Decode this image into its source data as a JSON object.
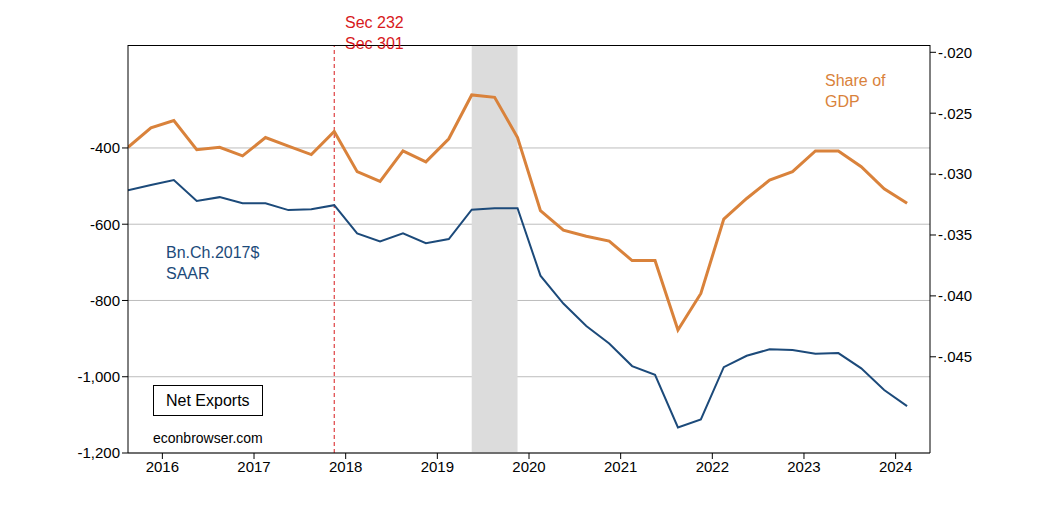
{
  "chart_data": {
    "type": "line",
    "x": [
      2016.125,
      2016.375,
      2016.625,
      2016.875,
      2017.125,
      2017.375,
      2017.625,
      2017.875,
      2018.125,
      2018.375,
      2018.625,
      2018.875,
      2019.125,
      2019.375,
      2019.625,
      2019.875,
      2020.125,
      2020.375,
      2020.625,
      2020.875,
      2021.125,
      2021.375,
      2021.625,
      2021.875,
      2022.125,
      2022.375,
      2022.625,
      2022.875,
      2023.125,
      2023.375,
      2023.625,
      2023.875,
      2024.125,
      2024.375,
      2024.625
    ],
    "xlim": [
      2016.125,
      2024.875
    ],
    "xticks": [
      {
        "value": 2016.5,
        "label": "2016"
      },
      {
        "value": 2017.5,
        "label": "2017"
      },
      {
        "value": 2018.5,
        "label": "2018"
      },
      {
        "value": 2019.5,
        "label": "2019"
      },
      {
        "value": 2020.5,
        "label": "2020"
      },
      {
        "value": 2021.5,
        "label": "2021"
      },
      {
        "value": 2022.5,
        "label": "2022"
      },
      {
        "value": 2023.5,
        "label": "2023"
      },
      {
        "value": 2024.5,
        "label": "2024"
      }
    ],
    "ylim": [
      -1200,
      -130
    ],
    "yticks": [
      {
        "value": -1200,
        "label": "-1,200"
      },
      {
        "value": -1000,
        "label": "-1,000"
      },
      -800,
      -600,
      -400
    ],
    "y2lim": [
      -0.0529,
      -0.0194
    ],
    "y2ticks": [
      {
        "value": -0.045,
        "label": "-.045"
      },
      {
        "value": -0.04,
        "label": "-.040"
      },
      {
        "value": -0.035,
        "label": "-.035"
      },
      {
        "value": -0.03,
        "label": "-.030"
      },
      {
        "value": -0.025,
        "label": "-.025"
      },
      {
        "value": -0.02,
        "label": "-.020"
      }
    ],
    "grid": true,
    "series": [
      {
        "name": "Bn.Ch.2017$ SAAR",
        "color": "#1c4a7a",
        "values": [
          -511,
          -497,
          -484,
          -539,
          -529,
          -545,
          -545,
          -563,
          -561,
          -550,
          -624,
          -645,
          -624,
          -650,
          -639,
          -562,
          -558,
          -558,
          -735,
          -808,
          -867,
          -913,
          -972,
          -995,
          -1133,
          -1112,
          -975,
          -945,
          -928,
          -930,
          -940,
          -938,
          -978,
          -1035,
          -1077
        ]
      },
      {
        "name": "Share of GDP",
        "color": "#d9823b",
        "axis": "y2",
        "values": [
          -0.0278,
          -0.0262,
          -0.0256,
          -0.028,
          -0.0278,
          -0.0285,
          -0.027,
          -0.0277,
          -0.0284,
          -0.0265,
          -0.0298,
          -0.0306,
          -0.0281,
          -0.029,
          -0.0271,
          -0.0235,
          -0.0237,
          -0.027,
          -0.033,
          -0.0346,
          -0.0351,
          -0.0355,
          -0.0371,
          -0.0371,
          -0.0428,
          -0.0398,
          -0.0337,
          -0.032,
          -0.0305,
          -0.0298,
          -0.0281,
          -0.0281,
          -0.0294,
          -0.0312,
          -0.0324
        ]
      }
    ],
    "shading": {
      "x": [
        2019.875,
        2020.375
      ],
      "color": "#dcdcdc"
    },
    "vline": {
      "x": 2018.375,
      "color": "#d7191c",
      "line_style": "dashed",
      "labels": [
        "Sec 232",
        "Sec 301"
      ]
    },
    "annotations": [
      {
        "lines": [
          "Bn.Ch.2017$",
          "SAAR"
        ],
        "color": "#1c4a7a"
      },
      {
        "lines": [
          "Share of",
          "GDP"
        ],
        "color": "#d9823b"
      },
      {
        "lines": [
          "Net Exports"
        ],
        "color": "#000000"
      },
      {
        "lines": [
          "econbrowser.com"
        ],
        "color": "#000000"
      }
    ]
  }
}
